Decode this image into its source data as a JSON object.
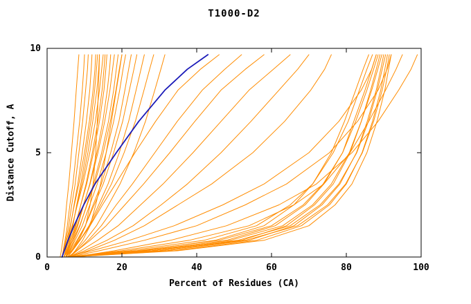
{
  "chart_data": {
    "type": "line",
    "title": "T1000-D2",
    "xlabel": "Percent of Residues (CA)",
    "ylabel": "Distance Cutoff, A",
    "xlim": [
      0,
      100
    ],
    "ylim": [
      0,
      10
    ],
    "xticks": [
      0,
      20,
      40,
      60,
      80,
      100
    ],
    "yticks": [
      0,
      5,
      10
    ],
    "grid": false,
    "legend": "none",
    "colors": {
      "series": "#ff8c00",
      "highlight": "#1a1ab8",
      "axis": "#000000",
      "background": "#ffffff"
    },
    "y_grid": [
      0,
      0.3,
      0.8,
      1.5,
      2.5,
      3.5,
      5,
      6.5,
      8,
      9,
      9.7
    ],
    "series": [
      {
        "role": "normal",
        "x": [
          3.5,
          3.8,
          4.2,
          4.7,
          5.2,
          5.8,
          6.5,
          7.2,
          7.8,
          8.2,
          8.5
        ]
      },
      {
        "role": "normal",
        "x": [
          4,
          4.3,
          4.8,
          5.4,
          6.1,
          6.9,
          7.8,
          8.7,
          9.4,
          9.8,
          10
        ]
      },
      {
        "role": "normal",
        "x": [
          4,
          4.4,
          5,
          5.8,
          6.6,
          7.5,
          8.5,
          9.5,
          10.3,
          10.8,
          11
        ]
      },
      {
        "role": "normal",
        "x": [
          4.5,
          4.9,
          5.5,
          6.3,
          7.2,
          8.2,
          9.4,
          10.5,
          11.4,
          11.8,
          12
        ]
      },
      {
        "role": "normal",
        "x": [
          4,
          4.5,
          5.2,
          6.2,
          7.3,
          8.5,
          10,
          11.3,
          12.3,
          12.8,
          13
        ]
      },
      {
        "role": "normal",
        "x": [
          5,
          5.4,
          6,
          6.9,
          7.9,
          9,
          10.4,
          11.7,
          12.7,
          13.2,
          13.5
        ]
      },
      {
        "role": "normal",
        "x": [
          4.5,
          5,
          5.8,
          6.8,
          8,
          9.3,
          10.9,
          12.2,
          13.3,
          13.8,
          14
        ]
      },
      {
        "role": "normal",
        "x": [
          4,
          4.6,
          5.5,
          6.7,
          8.1,
          9.6,
          11.4,
          12.9,
          14,
          14.6,
          15
        ]
      },
      {
        "role": "normal",
        "x": [
          5,
          5.6,
          6.5,
          7.7,
          9,
          10.4,
          12.1,
          13.6,
          14.7,
          15.2,
          15.5
        ]
      },
      {
        "role": "normal",
        "x": [
          4.5,
          5.2,
          6.2,
          7.5,
          9,
          10.6,
          12.4,
          14,
          15.2,
          15.7,
          16
        ]
      },
      {
        "role": "normal",
        "x": [
          5,
          5.7,
          6.8,
          8.2,
          9.8,
          11.4,
          13.3,
          14.9,
          16.1,
          16.7,
          17
        ]
      },
      {
        "role": "normal",
        "x": [
          4.5,
          5.3,
          6.5,
          8,
          9.7,
          11.5,
          13.6,
          15.4,
          16.8,
          17.5,
          18
        ]
      },
      {
        "role": "normal",
        "x": [
          5,
          5.9,
          7.2,
          8.8,
          10.6,
          12.4,
          14.6,
          16.4,
          17.8,
          18.5,
          19
        ]
      },
      {
        "role": "normal",
        "x": [
          4.5,
          5.5,
          6.9,
          8.7,
          10.7,
          12.7,
          15,
          16.9,
          18.4,
          19.3,
          20
        ]
      },
      {
        "role": "normal",
        "x": [
          5,
          6,
          7.5,
          9.4,
          11.4,
          13.4,
          15.8,
          17.8,
          19.4,
          20.3,
          21
        ]
      },
      {
        "role": "normal",
        "x": [
          5.5,
          6.6,
          8.2,
          10.2,
          12.3,
          14.5,
          17,
          19.2,
          20.8,
          21.8,
          22.5
        ]
      },
      {
        "role": "normal",
        "x": [
          5,
          6.2,
          8,
          10.2,
          12.6,
          15,
          17.8,
          20.2,
          22,
          23.2,
          24
        ]
      },
      {
        "role": "normal",
        "x": [
          5.5,
          6.8,
          8.8,
          11.2,
          13.8,
          16.3,
          19.3,
          21.8,
          23.8,
          25.1,
          26
        ]
      },
      {
        "role": "normal",
        "x": [
          5,
          6.5,
          8.7,
          11.4,
          14.3,
          17.2,
          20.6,
          23.6,
          25.9,
          27.4,
          28.5
        ]
      },
      {
        "role": "normal",
        "x": [
          6,
          7.7,
          10.2,
          13.2,
          16.4,
          19.5,
          23.2,
          26.3,
          28.8,
          30.4,
          31.5
        ]
      },
      {
        "role": "normal",
        "x": [
          5,
          6.5,
          8.5,
          10.3,
          11.5,
          12.3,
          13,
          13.4,
          13.7,
          13.9,
          14
        ]
      },
      {
        "role": "normal",
        "x": [
          6,
          7.5,
          9.5,
          11.5,
          13,
          14.3,
          15.8,
          17.2,
          18.5,
          19.4,
          20
        ]
      },
      {
        "role": "normal",
        "x": [
          5,
          6.5,
          8.8,
          11.5,
          14.8,
          18.3,
          23.5,
          29,
          35,
          41,
          46
        ]
      },
      {
        "role": "normal",
        "x": [
          6,
          8,
          11,
          14.5,
          18.5,
          22.8,
          28.8,
          34.8,
          41.5,
          47.5,
          52
        ]
      },
      {
        "role": "normal",
        "x": [
          5.5,
          8,
          11.5,
          15.8,
          20.8,
          25.8,
          32.8,
          39.5,
          46.5,
          53,
          58
        ]
      },
      {
        "role": "normal",
        "x": [
          6,
          9,
          13.5,
          19,
          25,
          31,
          39,
          46.5,
          54,
          60.5,
          65
        ]
      },
      {
        "role": "normal",
        "x": [
          6,
          10,
          16,
          23,
          30.5,
          37.5,
          46.5,
          54.5,
          62,
          67,
          70
        ]
      },
      {
        "role": "normal",
        "x": [
          6,
          11,
          18,
          26,
          35,
          44,
          55,
          63.5,
          70.5,
          74.2,
          76
        ]
      },
      {
        "role": "normal",
        "x": [
          5,
          25,
          45,
          58,
          66,
          71,
          76,
          79.5,
          82.5,
          84.5,
          86
        ]
      },
      {
        "role": "normal",
        "x": [
          5,
          22,
          42,
          56,
          65,
          71,
          76.5,
          80.5,
          83.5,
          85.5,
          87
        ]
      },
      {
        "role": "normal",
        "x": [
          6,
          28,
          48,
          61,
          69,
          74,
          79,
          82,
          85,
          86.8,
          88
        ]
      },
      {
        "role": "normal",
        "x": [
          5,
          24,
          46,
          60,
          68.5,
          73.8,
          79,
          82.5,
          85.5,
          87.3,
          88.5
        ]
      },
      {
        "role": "normal",
        "x": [
          6,
          30,
          52,
          64,
          71.5,
          76.5,
          81,
          84,
          86.5,
          88,
          89
        ]
      },
      {
        "role": "normal",
        "x": [
          5,
          26,
          49,
          63,
          71,
          76,
          80.8,
          84,
          86.8,
          88.4,
          89.5
        ]
      },
      {
        "role": "normal",
        "x": [
          6,
          32,
          54,
          66,
          73.5,
          78.3,
          82.7,
          85.6,
          88,
          89.2,
          90
        ]
      },
      {
        "role": "normal",
        "x": [
          5,
          28,
          51,
          65,
          73,
          78,
          82.8,
          85.9,
          88.3,
          89.6,
          90.5
        ]
      },
      {
        "role": "normal",
        "x": [
          6,
          34,
          56,
          68,
          75.5,
          80,
          84.2,
          87,
          89.2,
          90.3,
          91
        ]
      },
      {
        "role": "normal",
        "x": [
          5,
          30,
          53,
          67,
          75,
          79.8,
          84.3,
          87.3,
          89.6,
          90.8,
          91.5
        ]
      },
      {
        "role": "normal",
        "x": [
          6,
          35,
          58,
          70,
          77,
          81.5,
          85.5,
          88.2,
          90.3,
          91.3,
          92
        ]
      },
      {
        "role": "normal",
        "x": [
          6,
          20,
          38,
          54,
          66,
          74,
          81,
          86,
          90.5,
          93.3,
          95
        ]
      },
      {
        "role": "normal",
        "x": [
          7,
          18,
          33,
          48,
          62,
          72,
          81.5,
          88.5,
          94,
          97.3,
          99
        ]
      },
      {
        "role": "normal",
        "x": [
          5,
          12,
          22,
          34,
          47,
          58,
          70,
          78,
          84,
          86.8,
          88
        ]
      },
      {
        "role": "normal",
        "x": [
          6,
          14,
          26,
          40,
          53,
          64,
          75.5,
          83,
          88.5,
          90.9,
          92
        ]
      },
      {
        "role": "highlight",
        "x": [
          4,
          4.6,
          5.6,
          7.2,
          9.8,
          12.8,
          18.5,
          24.5,
          31.5,
          37.5,
          43
        ]
      }
    ]
  }
}
